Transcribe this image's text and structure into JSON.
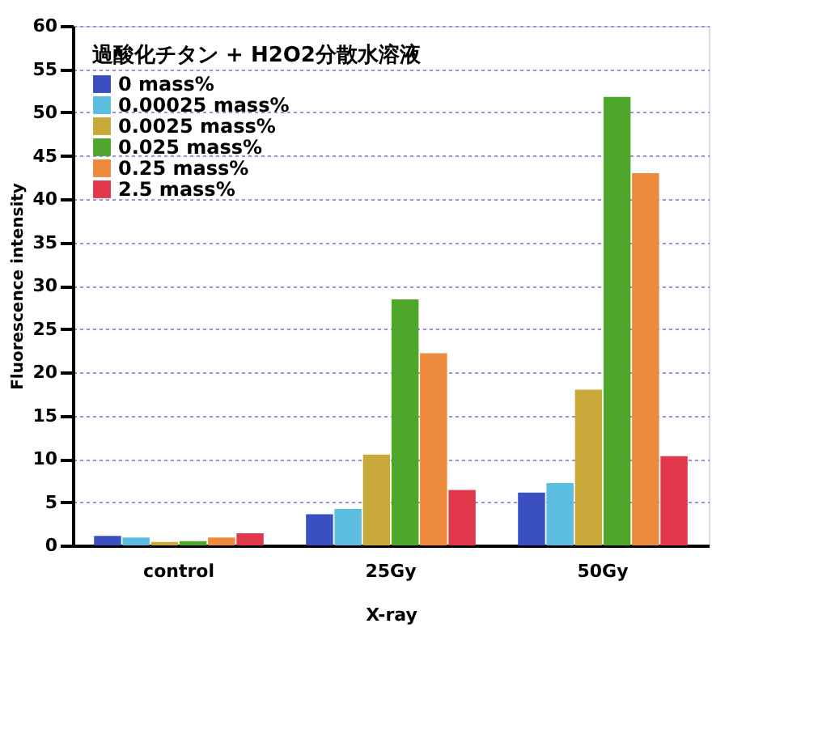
{
  "chart_data": {
    "type": "bar",
    "xlabel": "X-ray",
    "ylabel": "Fluorescence intensity",
    "legend_title": "過酸化チタン + H2O2分散水溶液",
    "categories": [
      "control",
      "25Gy",
      "50Gy"
    ],
    "series": [
      {
        "name": "0 mass%",
        "color": "#3a4fc0",
        "values": [
          1.1,
          3.6,
          6.1
        ]
      },
      {
        "name": "0.00025 mass%",
        "color": "#5bbde0",
        "values": [
          0.9,
          4.2,
          7.2
        ]
      },
      {
        "name": "0.0025 mass%",
        "color": "#c9a93a",
        "values": [
          0.4,
          10.5,
          18.0
        ]
      },
      {
        "name": "0.025 mass%",
        "color": "#4ea62a",
        "values": [
          0.5,
          28.4,
          51.8
        ]
      },
      {
        "name": "0.25 mass%",
        "color": "#ee8a3c",
        "values": [
          0.9,
          22.2,
          43.0
        ]
      },
      {
        "name": "2.5 mass%",
        "color": "#e0384a",
        "values": [
          1.4,
          6.4,
          10.3
        ]
      }
    ],
    "ylim": [
      0,
      60
    ],
    "yticks": [
      0,
      5,
      10,
      15,
      20,
      25,
      30,
      35,
      40,
      45,
      50,
      55,
      60
    ],
    "grid": "y",
    "legend": "top left"
  }
}
